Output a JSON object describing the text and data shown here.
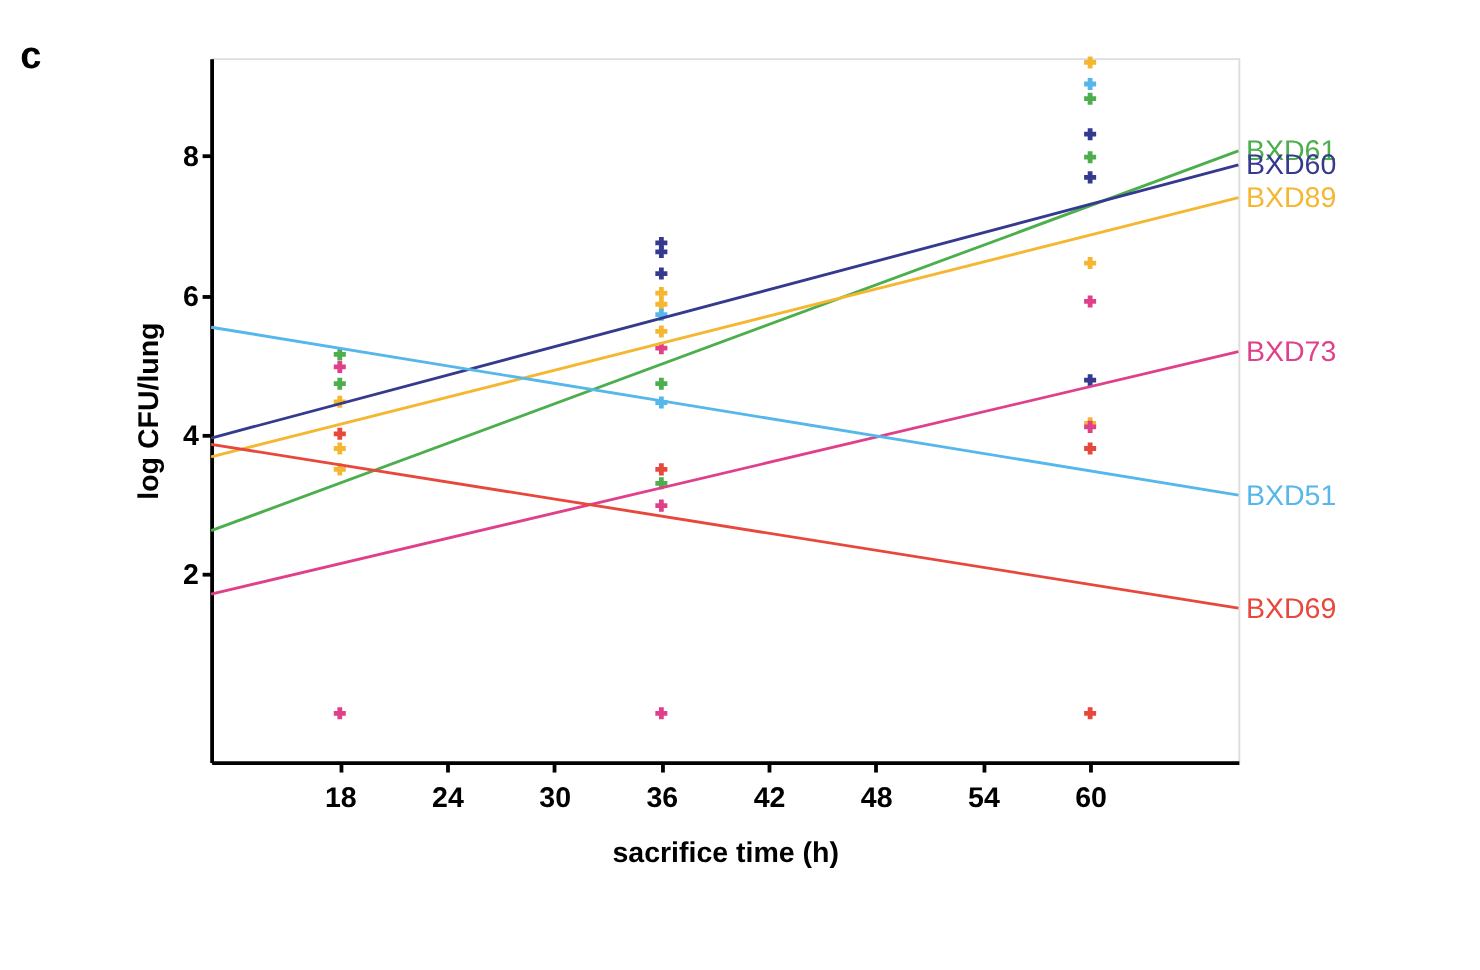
{
  "chart_data": {
    "type": "scatter",
    "title": "c",
    "xlabel": "sacrifice time (h)",
    "ylabel": "log CFU/lung",
    "xlim": [
      10.8,
      68.3
    ],
    "xticks": [
      18,
      24,
      30,
      36,
      42,
      48,
      54,
      60
    ],
    "ylim": [
      -0.7,
      9.4
    ],
    "yticks": [
      2,
      4,
      6,
      8
    ],
    "grid": false,
    "legend": false,
    "marker": "cross",
    "series": [
      {
        "type": "scatter",
        "color": "#4cae4c",
        "x": [
          18,
          18,
          36,
          36,
          60,
          60
        ],
        "values": [
          5.15,
          4.73,
          4.73,
          3.3,
          8.82,
          7.98
        ]
      },
      {
        "type": "scatter",
        "color": "#353a8f",
        "x": [
          36,
          36,
          36,
          60,
          60,
          60
        ],
        "values": [
          6.75,
          6.62,
          6.31,
          8.31,
          7.69,
          4.78
        ]
      },
      {
        "type": "scatter",
        "color": "#f5b731",
        "x": [
          18,
          18,
          18,
          36,
          36,
          36,
          60,
          60,
          60
        ],
        "values": [
          4.47,
          3.8,
          3.5,
          6.03,
          5.87,
          5.48,
          9.34,
          6.46,
          4.16
        ]
      },
      {
        "type": "scatter",
        "color": "#e0408a",
        "x": [
          18,
          18,
          36,
          36,
          36,
          60,
          60
        ],
        "values": [
          4.97,
          0,
          5.24,
          2.98,
          0,
          5.91,
          4.11
        ]
      },
      {
        "type": "scatter",
        "color": "#55b7ea",
        "x": [
          36,
          36,
          60
        ],
        "values": [
          5.72,
          4.46,
          9.03
        ]
      },
      {
        "type": "scatter",
        "color": "#e8483b",
        "x": [
          18,
          36,
          60,
          60
        ],
        "values": [
          4.01,
          3.5,
          3.8,
          0
        ]
      },
      {
        "type": "line",
        "name": "BXD61",
        "color": "#4cae4c",
        "marker": "none",
        "x": [
          10.8,
          68.3
        ],
        "values": [
          2.62,
          8.07
        ]
      },
      {
        "type": "line",
        "name": "BXD60",
        "color": "#353a8f",
        "marker": "none",
        "x": [
          10.8,
          68.3
        ],
        "values": [
          3.95,
          7.87
        ]
      },
      {
        "type": "line",
        "name": "BXD89",
        "color": "#f5b731",
        "marker": "none",
        "x": [
          10.8,
          68.3
        ],
        "values": [
          3.68,
          7.4
        ]
      },
      {
        "type": "line",
        "name": "BXD73",
        "color": "#e0408a",
        "marker": "none",
        "x": [
          10.8,
          68.3
        ],
        "values": [
          1.71,
          5.19
        ]
      },
      {
        "type": "line",
        "name": "BXD51",
        "color": "#55b7ea",
        "marker": "none",
        "x": [
          10.8,
          68.3
        ],
        "values": [
          5.54,
          3.13
        ]
      },
      {
        "type": "line",
        "name": "BXD69",
        "color": "#e8483b",
        "marker": "none",
        "x": [
          10.8,
          68.3
        ],
        "values": [
          3.86,
          1.51
        ]
      }
    ]
  }
}
